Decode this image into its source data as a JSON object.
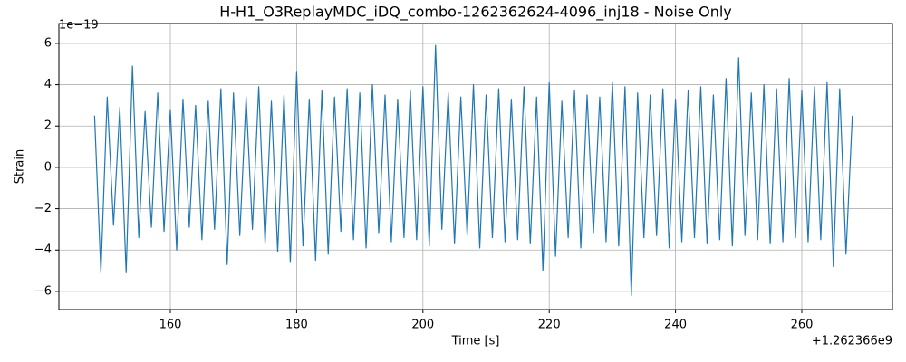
{
  "chart_data": {
    "type": "line",
    "title": "H-H1_O3ReplayMDC_iDQ_combo-1262362624-4096_inj18 - Noise Only",
    "xlabel": "Time [s]",
    "ylabel": "Strain",
    "x_offset_label": "+1.262366e9",
    "y_offset_label": "1e−19",
    "x": [
      148,
      149,
      150,
      151,
      152,
      153,
      154,
      155,
      156,
      157,
      158,
      159,
      160,
      161,
      162,
      163,
      164,
      165,
      166,
      167,
      168,
      169,
      170,
      171,
      172,
      173,
      174,
      175,
      176,
      177,
      178,
      179,
      180,
      181,
      182,
      183,
      184,
      185,
      186,
      187,
      188,
      189,
      190,
      191,
      192,
      193,
      194,
      195,
      196,
      197,
      198,
      199,
      200,
      201,
      202,
      203,
      204,
      205,
      206,
      207,
      208,
      209,
      210,
      211,
      212,
      213,
      214,
      215,
      216,
      217,
      218,
      219,
      220,
      221,
      222,
      223,
      224,
      225,
      226,
      227,
      228,
      229,
      230,
      231,
      232,
      233,
      234,
      235,
      236,
      237,
      238,
      239,
      240,
      241,
      242,
      243,
      244,
      245,
      246,
      247,
      248,
      249,
      250,
      251,
      252,
      253,
      254,
      255,
      256,
      257,
      258,
      259,
      260,
      261,
      262,
      263,
      264,
      265,
      266,
      267,
      268
    ],
    "series": [
      {
        "name": "Noise Only",
        "color": "#1f77b4",
        "values": [
          2.5,
          -5.1,
          3.4,
          -2.8,
          2.9,
          -5.1,
          4.9,
          -3.4,
          2.7,
          -2.9,
          3.6,
          -3.1,
          2.8,
          -4.0,
          3.3,
          -2.9,
          3.0,
          -3.5,
          3.2,
          -3.0,
          3.8,
          -4.7,
          3.6,
          -3.3,
          3.4,
          -3.0,
          3.9,
          -3.7,
          3.2,
          -4.1,
          3.5,
          -4.6,
          4.6,
          -3.8,
          3.3,
          -4.5,
          3.7,
          -4.2,
          3.4,
          -3.1,
          3.8,
          -3.5,
          3.6,
          -3.9,
          4.0,
          -3.2,
          3.5,
          -3.6,
          3.3,
          -3.4,
          3.7,
          -3.5,
          3.9,
          -3.8,
          5.9,
          -3.0,
          3.6,
          -3.7,
          3.4,
          -3.3,
          4.0,
          -3.9,
          3.5,
          -3.4,
          3.8,
          -3.6,
          3.3,
          -3.5,
          3.9,
          -3.7,
          3.4,
          -5.0,
          4.1,
          -4.3,
          3.2,
          -3.4,
          3.7,
          -3.9,
          3.5,
          -3.2,
          3.4,
          -3.6,
          4.1,
          -3.8,
          3.9,
          -6.2,
          3.6,
          -3.4,
          3.5,
          -3.3,
          3.8,
          -3.9,
          3.3,
          -3.6,
          3.7,
          -3.4,
          3.9,
          -3.7,
          3.5,
          -3.5,
          4.3,
          -3.8,
          5.3,
          -3.3,
          3.6,
          -3.5,
          4.0,
          -3.7,
          3.8,
          -3.6,
          4.3,
          -3.4,
          3.7,
          -3.6,
          3.9,
          -3.5,
          4.1,
          -4.8,
          3.8,
          -4.2,
          2.5
        ]
      }
    ],
    "xlim": [
      142.35,
      274.35
    ],
    "ylim": [
      -6.88,
      6.96
    ],
    "xticks": [
      160,
      180,
      200,
      220,
      240,
      260
    ],
    "yticks": [
      {
        "value": -6,
        "label": "−6"
      },
      {
        "value": -4,
        "label": "−4"
      },
      {
        "value": -2,
        "label": "−2"
      },
      0,
      2,
      4,
      6
    ],
    "grid": true
  }
}
